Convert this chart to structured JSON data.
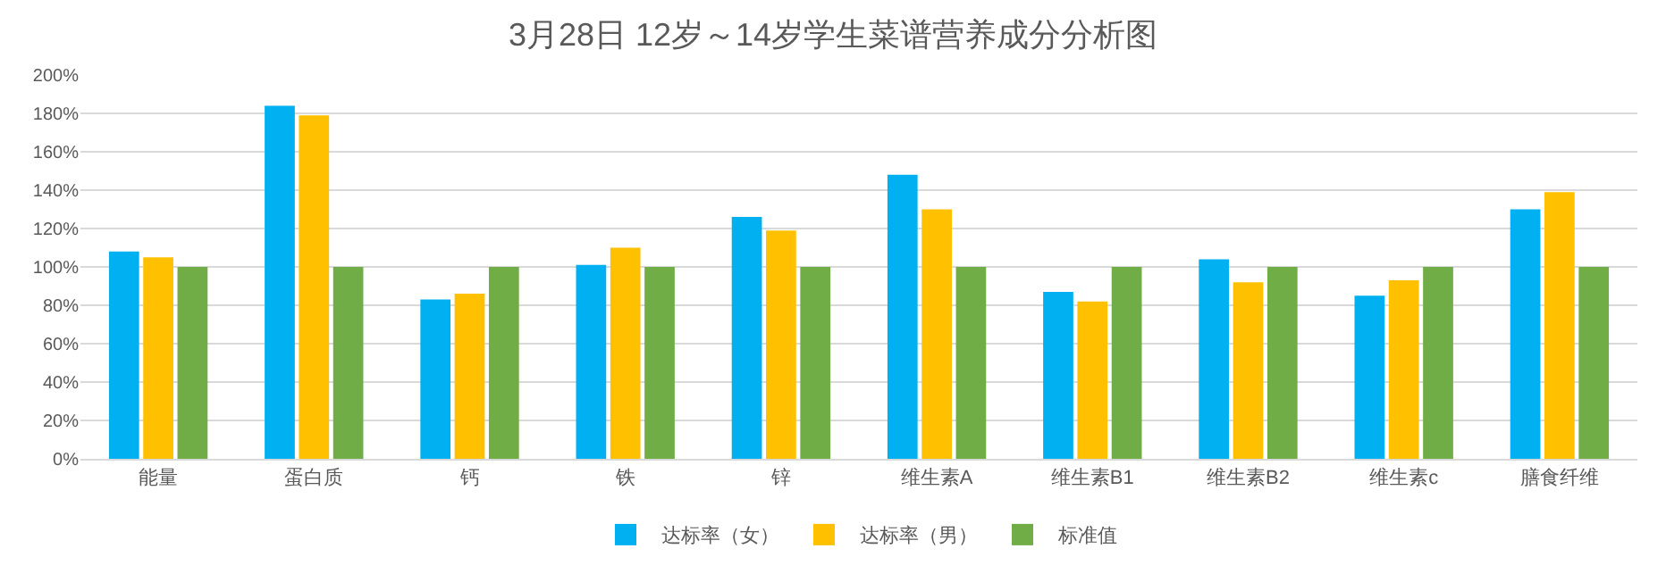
{
  "chart_data": {
    "type": "bar",
    "title": "3月28日 12岁～14岁学生菜谱营养成分分析图",
    "categories": [
      "能量",
      "蛋白质",
      "钙",
      "铁",
      "锌",
      "维生素A",
      "维生素B1",
      "维生素B2",
      "维生素c",
      "膳食纤维"
    ],
    "series": [
      {
        "name": "达标率（女）",
        "color": "#00b0f0",
        "values": [
          108,
          184,
          83,
          101,
          126,
          148,
          87,
          104,
          85,
          130
        ]
      },
      {
        "name": "达标率（男）",
        "color": "#ffc000",
        "values": [
          105,
          179,
          86,
          110,
          119,
          130,
          82,
          92,
          93,
          139
        ]
      },
      {
        "name": "标准值",
        "color": "#70ad47",
        "values": [
          100,
          100,
          100,
          100,
          100,
          100,
          100,
          100,
          100,
          100
        ]
      }
    ],
    "ylim": [
      0,
      200
    ],
    "yticks": [
      {
        "value": 0,
        "label": "0%"
      },
      {
        "value": 20,
        "label": "20%"
      },
      {
        "value": 40,
        "label": "40%"
      },
      {
        "value": 60,
        "label": "60%"
      },
      {
        "value": 80,
        "label": "80%"
      },
      {
        "value": 100,
        "label": "100%"
      },
      {
        "value": 120,
        "label": "120%"
      },
      {
        "value": 140,
        "label": "140%"
      },
      {
        "value": 160,
        "label": "160%"
      },
      {
        "value": 180,
        "label": "180%"
      },
      {
        "value": 200,
        "label": "200%"
      }
    ],
    "grid": "y",
    "legend": "bottom"
  }
}
